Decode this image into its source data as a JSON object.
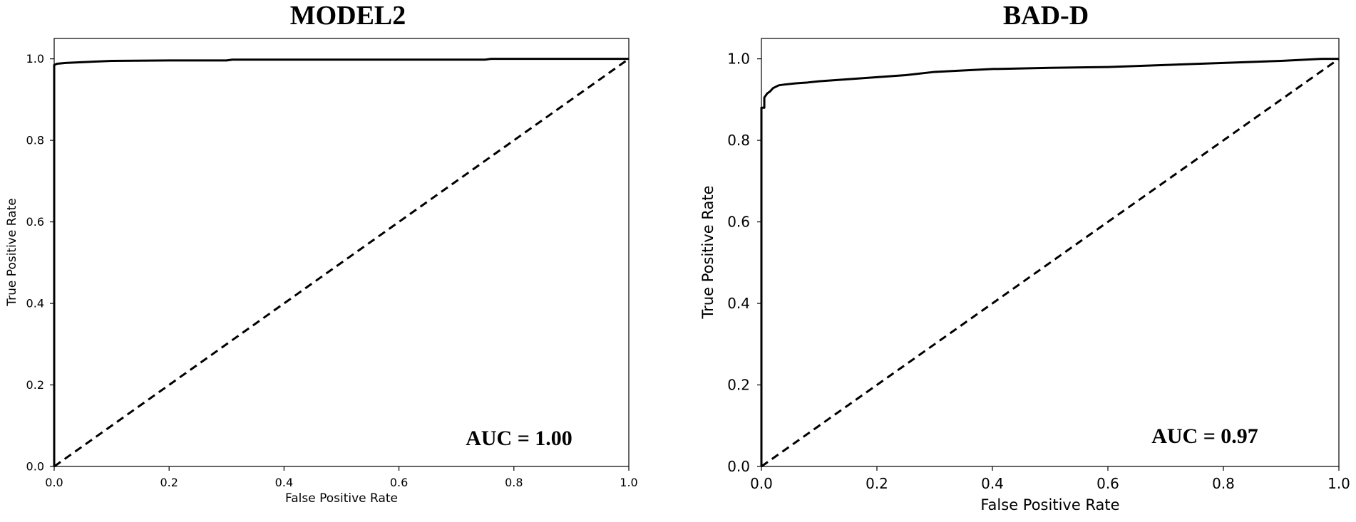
{
  "chart_data": [
    {
      "type": "line",
      "title": "MODEL2",
      "xlabel": "False Positive Rate",
      "ylabel": "True Positive Rate",
      "xlim": [
        0,
        1
      ],
      "ylim": [
        0,
        1.05
      ],
      "x_ticks": [
        "0.0",
        "0.2",
        "0.4",
        "0.6",
        "0.8",
        "1.0"
      ],
      "y_ticks": [
        "0.0",
        "0.2",
        "0.4",
        "0.6",
        "0.8",
        "1.0"
      ],
      "annotation": "AUC = 1.00",
      "grid": false,
      "series": [
        {
          "style": "solid",
          "x": [
            0.0,
            0.0,
            0.005,
            0.02,
            0.05,
            0.1,
            0.2,
            0.3,
            0.31,
            0.5,
            0.75,
            0.76,
            0.9,
            1.0
          ],
          "y": [
            0.0,
            0.985,
            0.988,
            0.99,
            0.992,
            0.995,
            0.996,
            0.996,
            0.998,
            0.998,
            0.998,
            1.0,
            1.0,
            1.0
          ]
        },
        {
          "style": "dashed",
          "x": [
            0.0,
            1.0
          ],
          "y": [
            0.0,
            1.0
          ]
        }
      ]
    },
    {
      "type": "line",
      "title": "BAD-D",
      "xlabel": "False Positive Rate",
      "ylabel": "True Positive Rate",
      "xlim": [
        0,
        1
      ],
      "ylim": [
        0,
        1.05
      ],
      "x_ticks": [
        "0.0",
        "0.2",
        "0.4",
        "0.6",
        "0.8",
        "1.0"
      ],
      "y_ticks": [
        "0.0",
        "0.2",
        "0.4",
        "0.6",
        "0.8",
        "1.0"
      ],
      "annotation": "AUC = 0.97",
      "grid": false,
      "series": [
        {
          "style": "solid",
          "x": [
            0.0,
            0.0,
            0.005,
            0.005,
            0.01,
            0.015,
            0.02,
            0.03,
            0.04,
            0.06,
            0.08,
            0.1,
            0.15,
            0.2,
            0.25,
            0.3,
            0.4,
            0.5,
            0.6,
            0.7,
            0.8,
            0.9,
            0.97,
            1.0
          ],
          "y": [
            0.0,
            0.88,
            0.88,
            0.905,
            0.915,
            0.92,
            0.928,
            0.935,
            0.937,
            0.94,
            0.942,
            0.945,
            0.95,
            0.955,
            0.96,
            0.968,
            0.975,
            0.978,
            0.98,
            0.985,
            0.99,
            0.995,
            1.0,
            1.0
          ]
        },
        {
          "style": "dashed",
          "x": [
            0.0,
            1.0
          ],
          "y": [
            0.0,
            1.0
          ]
        }
      ]
    }
  ]
}
